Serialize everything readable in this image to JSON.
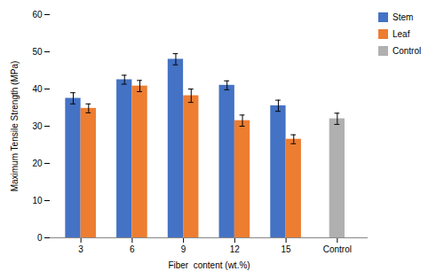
{
  "chart_data": {
    "type": "bar",
    "categories": [
      "3",
      "6",
      "9",
      "12",
      "15",
      "Control"
    ],
    "series": [
      {
        "name": "Stem",
        "color": "#4472C4",
        "values": [
          37.5,
          42.5,
          48.0,
          41.0,
          35.5,
          null
        ],
        "errors": [
          1.5,
          1.2,
          1.5,
          1.2,
          1.5,
          null
        ]
      },
      {
        "name": "Leaf",
        "color": "#ED7D31",
        "values": [
          34.8,
          40.8,
          38.2,
          31.5,
          26.5,
          null
        ],
        "errors": [
          1.2,
          1.5,
          1.8,
          1.5,
          1.2,
          null
        ]
      },
      {
        "name": "Control",
        "color": "#B0B0B0",
        "values": [
          null,
          null,
          null,
          null,
          null,
          32.0
        ],
        "errors": [
          null,
          null,
          null,
          null,
          null,
          1.5
        ]
      }
    ],
    "xlabel": "Fiber  content (wt.%)",
    "ylabel": "Maximum Tensile Strength (MPa)",
    "ylim": [
      0,
      60
    ],
    "yticks": [
      0,
      10,
      20,
      30,
      40,
      50,
      60
    ],
    "grid": false,
    "legend": "right"
  }
}
